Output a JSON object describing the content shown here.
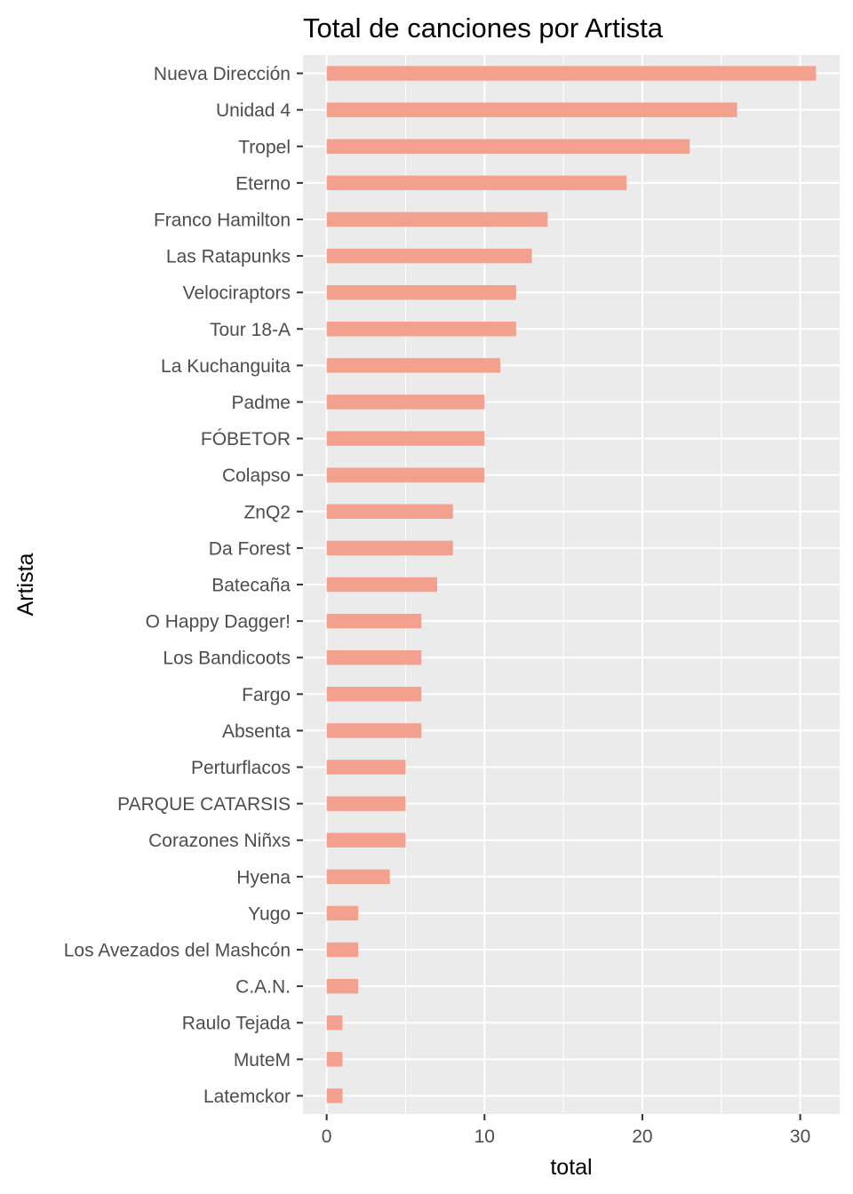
{
  "chart_data": {
    "type": "bar",
    "orientation": "horizontal",
    "title": "Total de canciones por Artista",
    "xlabel": "total",
    "ylabel": "Artista",
    "xlim": [
      -1.5,
      32.5
    ],
    "xticks": [
      0,
      10,
      20,
      30
    ],
    "grid": true,
    "legend": "none",
    "categories": [
      "Nueva Dirección",
      "Unidad 4",
      "Tropel",
      "Eterno",
      "Franco Hamilton",
      "Las Ratapunks",
      "Velociraptors",
      "Tour 18-A",
      "La Kuchanguita",
      "Padme",
      "FÓBETOR",
      "Colapso",
      "ZnQ2",
      "Da Forest",
      "Batecaña",
      "O Happy Dagger!",
      "Los Bandicoots",
      "Fargo",
      "Absenta",
      "Perturflacos",
      "PARQUE CATARSIS",
      "Corazones Niñxs",
      "Hyena",
      "Yugo",
      "Los Avezados del Mashcón",
      "C.A.N.",
      "Raulo Tejada",
      "MuteM",
      "Latemckor"
    ],
    "values": [
      31,
      26,
      23,
      19,
      14,
      13,
      12,
      12,
      11,
      10,
      10,
      10,
      8,
      8,
      7,
      6,
      6,
      6,
      6,
      5,
      5,
      5,
      4,
      2,
      2,
      2,
      1,
      1,
      1
    ],
    "colors": {
      "bar": "#f4a08e",
      "panel": "#ebebeb",
      "grid_major": "#ffffff",
      "tick_text": "#4d4d4d",
      "tick_mark": "#333333"
    }
  }
}
